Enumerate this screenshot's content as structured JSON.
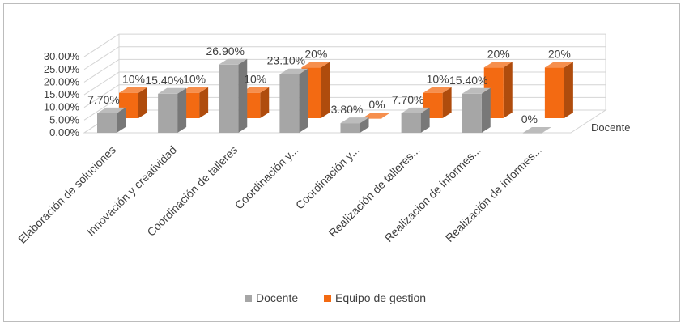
{
  "chart_data": {
    "type": "bar",
    "style": "3d-clustered-column",
    "categories": [
      "Elaboración de soluciones",
      "Innovación y creatividad",
      "Coordinación de talleres",
      "Coordinación y...",
      "Coordinación y...",
      "Realización de talleres...",
      "Realización de informes...",
      "Realización de informes..."
    ],
    "series": [
      {
        "name": "Docente",
        "values": [
          7.7,
          15.4,
          26.9,
          23.1,
          3.8,
          7.7,
          15.4,
          0
        ],
        "labels": [
          "7.70%",
          "15.40%",
          "26.90%",
          "23.10%",
          "3.80%",
          "7.70%",
          "15.40%",
          "0%"
        ],
        "color": "#a6a6a6"
      },
      {
        "name": "Equipo de gestion",
        "values": [
          10,
          10,
          10,
          20,
          0,
          10,
          20,
          20
        ],
        "labels": [
          "10%",
          "10%",
          "10%",
          "20%",
          "0%",
          "10%",
          "20%",
          "20%"
        ],
        "color": "#f36a12"
      }
    ],
    "depth_axis_label": "Docente",
    "y_ticks": [
      "0.00%",
      "5.00%",
      "10.00%",
      "15.00%",
      "20.00%",
      "25.00%",
      "30.00%"
    ],
    "ylim": [
      0,
      30
    ],
    "grid": true,
    "legend_position": "bottom"
  }
}
